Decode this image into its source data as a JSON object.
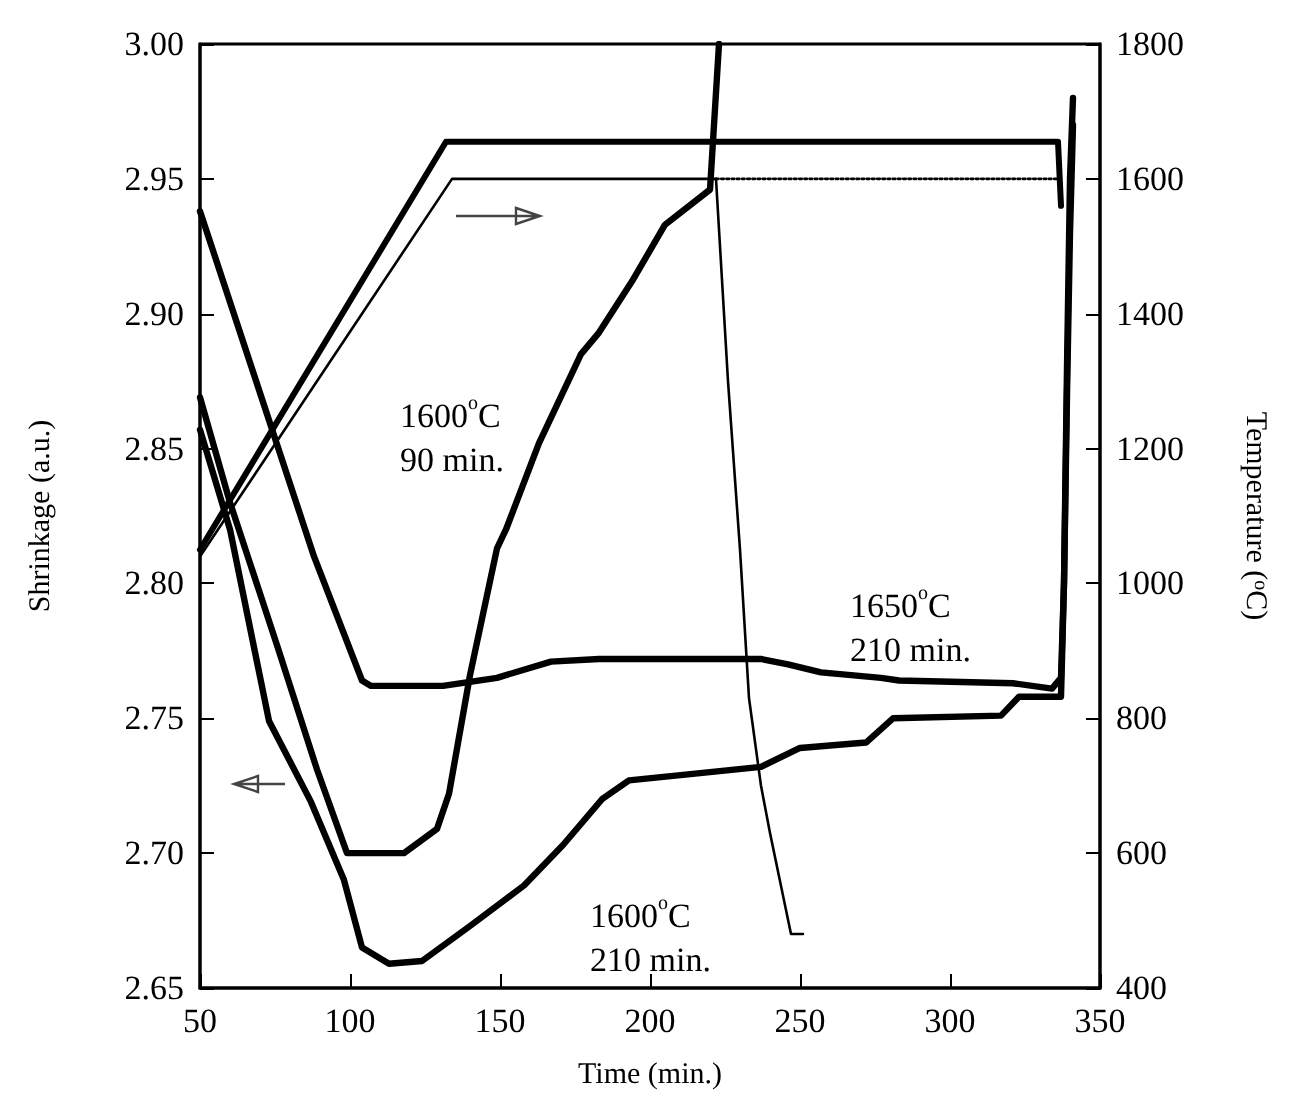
{
  "chart_data": {
    "type": "line",
    "xlabel": "Time (min.)",
    "ylabel": "Shrinkage (a.u.)",
    "y2label": "Temperature ($^{o}$C)",
    "xlim": [
      50,
      350
    ],
    "xticks": [
      50,
      100,
      150,
      200,
      250,
      300,
      350
    ],
    "ylim": [
      2.65,
      3.0
    ],
    "yticks": [
      {
        "value": 2.65,
        "label": "2.65"
      },
      {
        "value": 2.7,
        "label": "2.70"
      },
      {
        "value": 2.75,
        "label": "2.75"
      },
      {
        "value": 2.8,
        "label": "2.80"
      },
      {
        "value": 2.85,
        "label": "2.85"
      },
      {
        "value": 2.9,
        "label": "2.90"
      },
      {
        "value": 2.95,
        "label": "2.95"
      },
      {
        "value": 3.0,
        "label": "3.00"
      }
    ],
    "y2lim": [
      400,
      1800
    ],
    "y2ticks": [
      400,
      600,
      800,
      1000,
      1200,
      1400,
      1600,
      1800
    ],
    "grid": false,
    "marker": "none",
    "series": [
      {
        "color": "#000000",
        "x": [
          50,
          88,
          104,
          107,
          131,
          149,
          167,
          183,
          237,
          246,
          257,
          277,
          283,
          321,
          334,
          337,
          338,
          339,
          340,
          341
        ],
        "values": [
          2.938,
          2.81,
          2.764,
          2.762,
          2.762,
          2.765,
          2.771,
          2.772,
          2.772,
          2.77,
          2.767,
          2.765,
          2.764,
          2.763,
          2.761,
          2.765,
          2.8,
          2.88,
          2.95,
          2.98
        ]
      },
      {
        "color": "#000000",
        "x": [
          50,
          60,
          76,
          89,
          99,
          118,
          129,
          133,
          140,
          149,
          152,
          163,
          177,
          183,
          194,
          205,
          220,
          223
        ],
        "values": [
          2.869,
          2.83,
          2.776,
          2.731,
          2.7,
          2.7,
          2.709,
          2.722,
          2.766,
          2.813,
          2.82,
          2.852,
          2.885,
          2.893,
          2.912,
          2.933,
          2.946,
          3.0
        ]
      },
      {
        "color": "#000000",
        "x": [
          50,
          60,
          73,
          87,
          98,
          104,
          113,
          124,
          140,
          158,
          171,
          184,
          193,
          211,
          237,
          250,
          272,
          281,
          317,
          323,
          337,
          338,
          339,
          340,
          341
        ],
        "values": [
          2.857,
          2.82,
          2.749,
          2.719,
          2.69,
          2.665,
          2.659,
          2.66,
          2.673,
          2.688,
          2.703,
          2.72,
          2.727,
          2.729,
          2.732,
          2.739,
          2.741,
          2.75,
          2.751,
          2.758,
          2.758,
          2.8,
          2.87,
          2.93,
          2.97
        ]
      },
      {
        "color": "#000000",
        "axis": "y2",
        "x": [
          50,
          132,
          336,
          337
        ],
        "values": [
          1050,
          1655,
          1655,
          1560
        ]
      },
      {
        "color": "#000000",
        "axis": "y2",
        "x": [
          50,
          134,
          222,
          226,
          230,
          233,
          237,
          240,
          247,
          251
        ],
        "values": [
          1040,
          1600,
          1600,
          1300,
          1050,
          830,
          700,
          630,
          480,
          480
        ]
      },
      {
        "color": "#000000",
        "axis": "y2",
        "line_style": "dotted",
        "x": [
          222,
          336
        ],
        "values": [
          1600,
          1600
        ]
      }
    ],
    "annotations": [
      "1600$^{o}$C\n90 min.",
      "1650$^{o}$C\n210 min.",
      "1600$^{o}$C\n210 min."
    ]
  }
}
